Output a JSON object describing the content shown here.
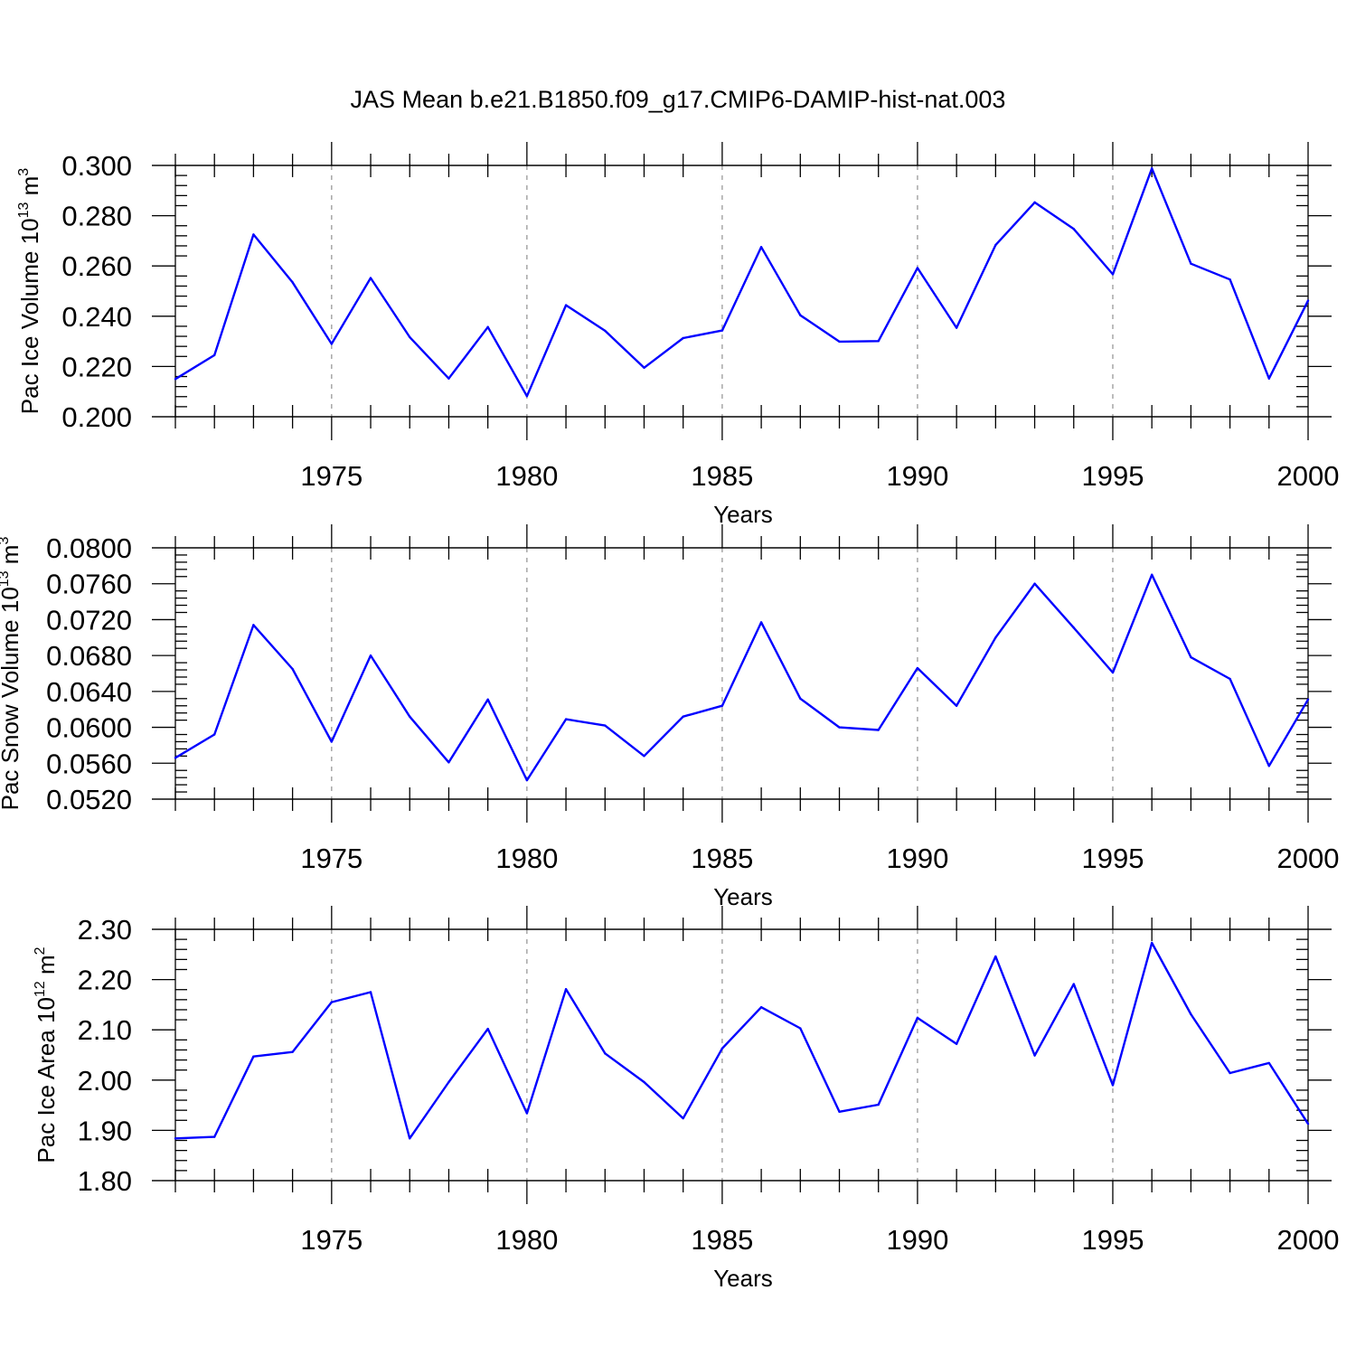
{
  "title": "JAS Mean b.e21.B1850.f09_g17.CMIP6-DAMIP-hist-nat.003",
  "line_color": "#0000ff",
  "chart_data": [
    {
      "type": "line",
      "ylabel": {
        "main": "Pac Ice Volume 10",
        "exp": "13",
        "unit": " m",
        "unit_exp": "3"
      },
      "xlabel": "Years",
      "xlim": [
        1971,
        2000
      ],
      "ylim": [
        0.2,
        0.3
      ],
      "x_ticks": [
        1975,
        1980,
        1985,
        1990,
        1995,
        2000
      ],
      "y_ticks": [
        0.2,
        0.22,
        0.24,
        0.26,
        0.28,
        0.3
      ],
      "y_tick_labels": [
        "0.200",
        "0.220",
        "0.240",
        "0.260",
        "0.280",
        "0.300"
      ],
      "x": [
        1971,
        1972,
        1973,
        1974,
        1975,
        1976,
        1977,
        1978,
        1979,
        1980,
        1981,
        1982,
        1983,
        1984,
        1985,
        1986,
        1987,
        1988,
        1989,
        1990,
        1991,
        1992,
        1993,
        1994,
        1995,
        1996,
        1997,
        1998,
        1999,
        2000
      ],
      "values": [
        0.215,
        0.2245,
        0.2725,
        0.2535,
        0.229,
        0.2552,
        0.2317,
        0.2152,
        0.2357,
        0.2082,
        0.2444,
        0.2342,
        0.2195,
        0.2313,
        0.2343,
        0.2675,
        0.2404,
        0.2299,
        0.2301,
        0.2592,
        0.2354,
        0.2683,
        0.2853,
        0.2747,
        0.2567,
        0.2988,
        0.2609,
        0.2546,
        0.2152,
        0.2462
      ]
    },
    {
      "type": "line",
      "ylabel": {
        "main": "Pac Snow Volume 10",
        "exp": "13",
        "unit": " m",
        "unit_exp": "3"
      },
      "xlabel": "Years",
      "xlim": [
        1971,
        2000
      ],
      "ylim": [
        0.052,
        0.08
      ],
      "x_ticks": [
        1975,
        1980,
        1985,
        1990,
        1995,
        2000
      ],
      "y_ticks": [
        0.052,
        0.056,
        0.06,
        0.064,
        0.068,
        0.072,
        0.076,
        0.08
      ],
      "y_tick_labels": [
        "0.0520",
        "0.0560",
        "0.0600",
        "0.0640",
        "0.0680",
        "0.0720",
        "0.0760",
        "0.0800"
      ],
      "x": [
        1971,
        1972,
        1973,
        1974,
        1975,
        1976,
        1977,
        1978,
        1979,
        1980,
        1981,
        1982,
        1983,
        1984,
        1985,
        1986,
        1987,
        1988,
        1989,
        1990,
        1991,
        1992,
        1993,
        1994,
        1995,
        1996,
        1997,
        1998,
        1999,
        2000
      ],
      "values": [
        0.0566,
        0.0592,
        0.0714,
        0.0665,
        0.0584,
        0.068,
        0.0612,
        0.0561,
        0.0631,
        0.0541,
        0.0609,
        0.0602,
        0.0568,
        0.0612,
        0.0624,
        0.0717,
        0.0632,
        0.06,
        0.0597,
        0.0666,
        0.0624,
        0.07,
        0.076,
        0.0711,
        0.0661,
        0.077,
        0.0678,
        0.0654,
        0.0557,
        0.0631
      ]
    },
    {
      "type": "line",
      "ylabel": {
        "main": "Pac Ice Area 10",
        "exp": "12",
        "unit": " m",
        "unit_exp": "2"
      },
      "xlabel": "Years",
      "xlim": [
        1971,
        2000
      ],
      "ylim": [
        1.8,
        2.3
      ],
      "x_ticks": [
        1975,
        1980,
        1985,
        1990,
        1995,
        2000
      ],
      "y_ticks": [
        1.8,
        1.9,
        2.0,
        2.1,
        2.2,
        2.3
      ],
      "y_tick_labels": [
        "1.80",
        "1.90",
        "2.00",
        "2.10",
        "2.20",
        "2.30"
      ],
      "x": [
        1971,
        1972,
        1973,
        1974,
        1975,
        1976,
        1977,
        1978,
        1979,
        1980,
        1981,
        1982,
        1983,
        1984,
        1985,
        1986,
        1987,
        1988,
        1989,
        1990,
        1991,
        1992,
        1993,
        1994,
        1995,
        1996,
        1997,
        1998,
        1999,
        2000
      ],
      "values": [
        1.884,
        1.887,
        2.047,
        2.056,
        2.155,
        2.175,
        1.884,
        1.996,
        2.102,
        1.934,
        2.181,
        2.053,
        1.996,
        1.924,
        2.063,
        2.145,
        2.103,
        1.937,
        1.951,
        2.124,
        2.072,
        2.246,
        2.049,
        2.191,
        1.99,
        2.273,
        2.131,
        2.014,
        2.034,
        1.913
      ]
    }
  ]
}
